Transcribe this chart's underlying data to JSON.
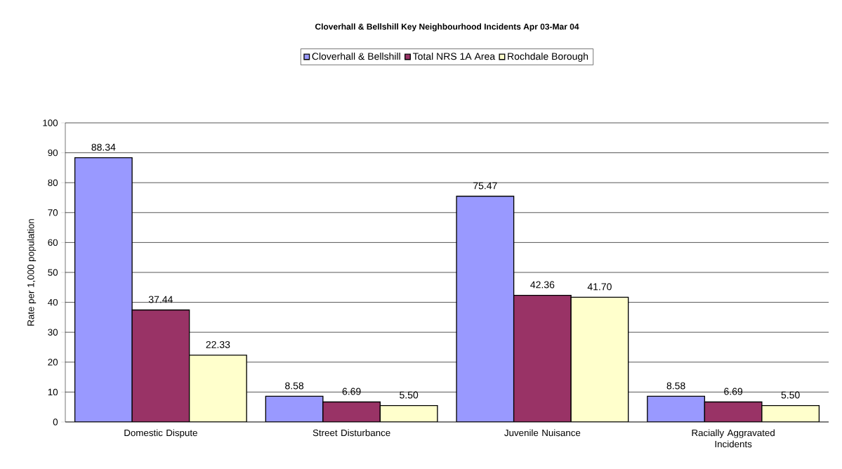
{
  "chart_data": {
    "type": "bar",
    "title": "**Cloverhall & Bellshill Key Neighbourhood Incidents Apr 03-Mar 04**",
    "ylabel": "Rate per 1,000 population",
    "categories": [
      "Domestic Dispute",
      "Street Disturbance",
      "Juvenile Nuisance",
      "Racially Aggravated Incidents"
    ],
    "series": [
      {
        "name": "Cloverhall & Bellshill",
        "color": "#9999ff",
        "values": [
          88.34,
          8.58,
          75.47,
          8.58
        ],
        "value_labels": [
          "88.34",
          "8.58",
          "75.47",
          "8.58"
        ]
      },
      {
        "name": "Total NRS 1A Area",
        "color": "#993366",
        "values": [
          37.44,
          6.69,
          42.36,
          6.69
        ],
        "value_labels": [
          "37.44",
          "6.69",
          "42.36",
          "6.69"
        ]
      },
      {
        "name": "Rochdale Borough",
        "color": "#ffffcc",
        "values": [
          22.33,
          5.5,
          41.7,
          5.5
        ],
        "value_labels": [
          "22.33",
          "5.50",
          "41.70",
          "5.50"
        ]
      }
    ],
    "ylim": [
      0,
      100
    ],
    "yticks": [
      0,
      10,
      20,
      30,
      40,
      50,
      60,
      70,
      80,
      90,
      100
    ],
    "grid": "y",
    "legend": "top"
  }
}
